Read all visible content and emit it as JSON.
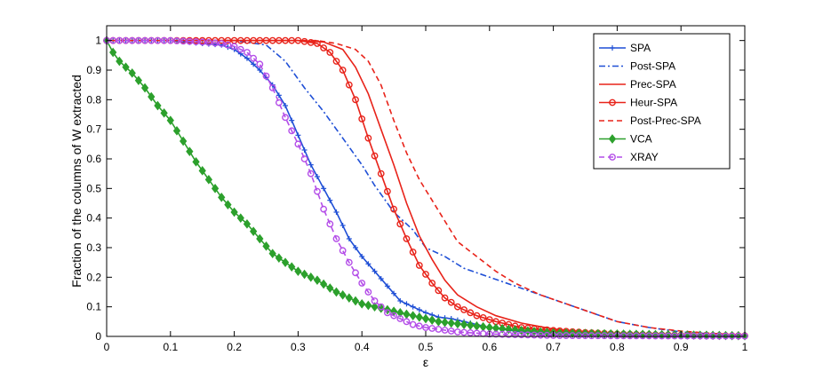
{
  "chart_data": {
    "type": "line",
    "xlabel": "ε",
    "ylabel": "Fraction of the columns of W extracted",
    "xlim": [
      0,
      1
    ],
    "ylim": [
      0,
      1.05
    ],
    "xticks": [
      "0",
      "0.1",
      "0.2",
      "0.3",
      "0.4",
      "0.5",
      "0.6",
      "0.7",
      "0.8",
      "0.9",
      "1"
    ],
    "yticks": [
      "0",
      "0.1",
      "0.2",
      "0.3",
      "0.4",
      "0.5",
      "0.6",
      "0.7",
      "0.8",
      "0.9",
      "1"
    ],
    "grid": false,
    "legend_position": "top-right",
    "series": [
      {
        "name": "SPA",
        "color": "#1f4fd6",
        "dash": "solid",
        "marker": "plus",
        "points": [
          [
            0,
            1
          ],
          [
            0.1,
            1
          ],
          [
            0.15,
            0.99
          ],
          [
            0.18,
            0.985
          ],
          [
            0.2,
            0.97
          ],
          [
            0.22,
            0.94
          ],
          [
            0.24,
            0.9
          ],
          [
            0.26,
            0.85
          ],
          [
            0.28,
            0.78
          ],
          [
            0.3,
            0.68
          ],
          [
            0.32,
            0.58
          ],
          [
            0.34,
            0.5
          ],
          [
            0.36,
            0.42
          ],
          [
            0.38,
            0.33
          ],
          [
            0.4,
            0.27
          ],
          [
            0.42,
            0.22
          ],
          [
            0.44,
            0.17
          ],
          [
            0.46,
            0.12
          ],
          [
            0.48,
            0.1
          ],
          [
            0.5,
            0.08
          ],
          [
            0.52,
            0.065
          ],
          [
            0.54,
            0.06
          ],
          [
            0.56,
            0.05
          ],
          [
            0.58,
            0.04
          ],
          [
            0.6,
            0.03
          ],
          [
            0.65,
            0.015
          ],
          [
            0.7,
            0.01
          ],
          [
            0.8,
            0.005
          ],
          [
            0.9,
            0.003
          ],
          [
            1,
            0.002
          ]
        ]
      },
      {
        "name": "Post-SPA",
        "color": "#1f4fd6",
        "dash": "dashdot",
        "marker": "none",
        "points": [
          [
            0,
            1
          ],
          [
            0.2,
            1
          ],
          [
            0.25,
            0.985
          ],
          [
            0.28,
            0.93
          ],
          [
            0.31,
            0.84
          ],
          [
            0.34,
            0.76
          ],
          [
            0.37,
            0.67
          ],
          [
            0.4,
            0.58
          ],
          [
            0.42,
            0.51
          ],
          [
            0.45,
            0.42
          ],
          [
            0.48,
            0.36
          ],
          [
            0.5,
            0.3
          ],
          [
            0.53,
            0.27
          ],
          [
            0.56,
            0.23
          ],
          [
            0.6,
            0.2
          ],
          [
            0.64,
            0.17
          ],
          [
            0.68,
            0.14
          ],
          [
            0.72,
            0.11
          ],
          [
            0.76,
            0.08
          ],
          [
            0.8,
            0.05
          ],
          [
            0.85,
            0.03
          ],
          [
            0.9,
            0.015
          ],
          [
            0.95,
            0.008
          ],
          [
            1,
            0.003
          ]
        ]
      },
      {
        "name": "Prec-SPA",
        "color": "#e8231a",
        "dash": "solid",
        "marker": "none",
        "points": [
          [
            0,
            1
          ],
          [
            0.3,
            1
          ],
          [
            0.34,
            0.995
          ],
          [
            0.37,
            0.97
          ],
          [
            0.39,
            0.91
          ],
          [
            0.41,
            0.82
          ],
          [
            0.43,
            0.7
          ],
          [
            0.45,
            0.58
          ],
          [
            0.47,
            0.45
          ],
          [
            0.49,
            0.34
          ],
          [
            0.51,
            0.26
          ],
          [
            0.53,
            0.19
          ],
          [
            0.55,
            0.14
          ],
          [
            0.58,
            0.1
          ],
          [
            0.61,
            0.07
          ],
          [
            0.65,
            0.045
          ],
          [
            0.7,
            0.025
          ],
          [
            0.75,
            0.015
          ],
          [
            0.8,
            0.01
          ],
          [
            0.9,
            0.005
          ],
          [
            1,
            0.002
          ]
        ]
      },
      {
        "name": "Heur-SPA",
        "color": "#e8231a",
        "dash": "solid",
        "marker": "circle",
        "points": [
          [
            0,
            1
          ],
          [
            0.3,
            1
          ],
          [
            0.33,
            0.99
          ],
          [
            0.35,
            0.96
          ],
          [
            0.37,
            0.9
          ],
          [
            0.39,
            0.8
          ],
          [
            0.41,
            0.67
          ],
          [
            0.43,
            0.55
          ],
          [
            0.45,
            0.43
          ],
          [
            0.47,
            0.33
          ],
          [
            0.49,
            0.24
          ],
          [
            0.51,
            0.18
          ],
          [
            0.53,
            0.13
          ],
          [
            0.55,
            0.1
          ],
          [
            0.58,
            0.07
          ],
          [
            0.61,
            0.05
          ],
          [
            0.65,
            0.03
          ],
          [
            0.7,
            0.02
          ],
          [
            0.75,
            0.013
          ],
          [
            0.8,
            0.008
          ],
          [
            0.9,
            0.004
          ],
          [
            1,
            0.002
          ]
        ]
      },
      {
        "name": "Post-Prec-SPA",
        "color": "#e8231a",
        "dash": "dashed",
        "marker": "none",
        "points": [
          [
            0,
            1
          ],
          [
            0.33,
            1
          ],
          [
            0.36,
            0.99
          ],
          [
            0.39,
            0.97
          ],
          [
            0.41,
            0.93
          ],
          [
            0.43,
            0.85
          ],
          [
            0.45,
            0.73
          ],
          [
            0.47,
            0.62
          ],
          [
            0.49,
            0.53
          ],
          [
            0.51,
            0.46
          ],
          [
            0.53,
            0.39
          ],
          [
            0.55,
            0.32
          ],
          [
            0.58,
            0.27
          ],
          [
            0.61,
            0.22
          ],
          [
            0.64,
            0.18
          ],
          [
            0.68,
            0.14
          ],
          [
            0.72,
            0.11
          ],
          [
            0.76,
            0.08
          ],
          [
            0.8,
            0.05
          ],
          [
            0.85,
            0.03
          ],
          [
            0.9,
            0.018
          ],
          [
            0.95,
            0.01
          ],
          [
            1,
            0.005
          ]
        ]
      },
      {
        "name": "VCA",
        "color": "#2ca02c",
        "dash": "solid",
        "marker": "diamond",
        "points": [
          [
            0,
            1
          ],
          [
            0.01,
            0.96
          ],
          [
            0.02,
            0.93
          ],
          [
            0.04,
            0.89
          ],
          [
            0.06,
            0.84
          ],
          [
            0.08,
            0.78
          ],
          [
            0.1,
            0.73
          ],
          [
            0.12,
            0.66
          ],
          [
            0.14,
            0.59
          ],
          [
            0.16,
            0.53
          ],
          [
            0.18,
            0.47
          ],
          [
            0.2,
            0.42
          ],
          [
            0.22,
            0.38
          ],
          [
            0.24,
            0.33
          ],
          [
            0.26,
            0.28
          ],
          [
            0.28,
            0.25
          ],
          [
            0.3,
            0.22
          ],
          [
            0.33,
            0.19
          ],
          [
            0.36,
            0.15
          ],
          [
            0.4,
            0.11
          ],
          [
            0.44,
            0.09
          ],
          [
            0.48,
            0.07
          ],
          [
            0.52,
            0.05
          ],
          [
            0.56,
            0.04
          ],
          [
            0.6,
            0.03
          ],
          [
            0.65,
            0.02
          ],
          [
            0.7,
            0.012
          ],
          [
            0.8,
            0.008
          ],
          [
            0.9,
            0.005
          ],
          [
            1,
            0.002
          ]
        ]
      },
      {
        "name": "XRAY",
        "color": "#b44ee8",
        "dash": "dashed",
        "marker": "circle",
        "points": [
          [
            0,
            1
          ],
          [
            0.1,
            1
          ],
          [
            0.15,
            0.995
          ],
          [
            0.18,
            0.99
          ],
          [
            0.2,
            0.98
          ],
          [
            0.22,
            0.96
          ],
          [
            0.24,
            0.92
          ],
          [
            0.26,
            0.84
          ],
          [
            0.28,
            0.74
          ],
          [
            0.3,
            0.65
          ],
          [
            0.32,
            0.55
          ],
          [
            0.34,
            0.43
          ],
          [
            0.36,
            0.33
          ],
          [
            0.38,
            0.25
          ],
          [
            0.4,
            0.18
          ],
          [
            0.42,
            0.12
          ],
          [
            0.44,
            0.08
          ],
          [
            0.46,
            0.06
          ],
          [
            0.48,
            0.04
          ],
          [
            0.5,
            0.03
          ],
          [
            0.55,
            0.015
          ],
          [
            0.6,
            0.008
          ],
          [
            0.7,
            0.003
          ],
          [
            0.8,
            0.002
          ],
          [
            1,
            0.001
          ]
        ]
      }
    ]
  }
}
